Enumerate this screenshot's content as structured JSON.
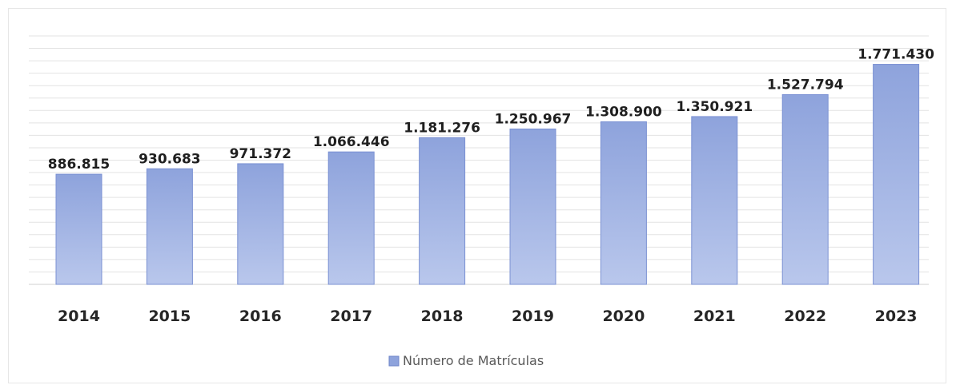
{
  "chart_data": {
    "type": "bar",
    "categories": [
      "2014",
      "2015",
      "2016",
      "2017",
      "2018",
      "2019",
      "2020",
      "2021",
      "2022",
      "2023"
    ],
    "series": [
      {
        "name": "Número de Matrículas",
        "values": [
          886815,
          930683,
          971372,
          1066446,
          1181276,
          1250967,
          1308900,
          1350921,
          1527794,
          1771430
        ],
        "labels": [
          "886.815",
          "930.683",
          "971.372",
          "1.066.446",
          "1.181.276",
          "1.250.967",
          "1.308.900",
          "1.350.921",
          "1.527.794",
          "1.771.430"
        ],
        "color": "#8ea3dc"
      }
    ],
    "title": "",
    "xlabel": "",
    "ylabel": "",
    "ylim": [
      0,
      2000000
    ],
    "grid": true,
    "legend": "bottom-center"
  }
}
